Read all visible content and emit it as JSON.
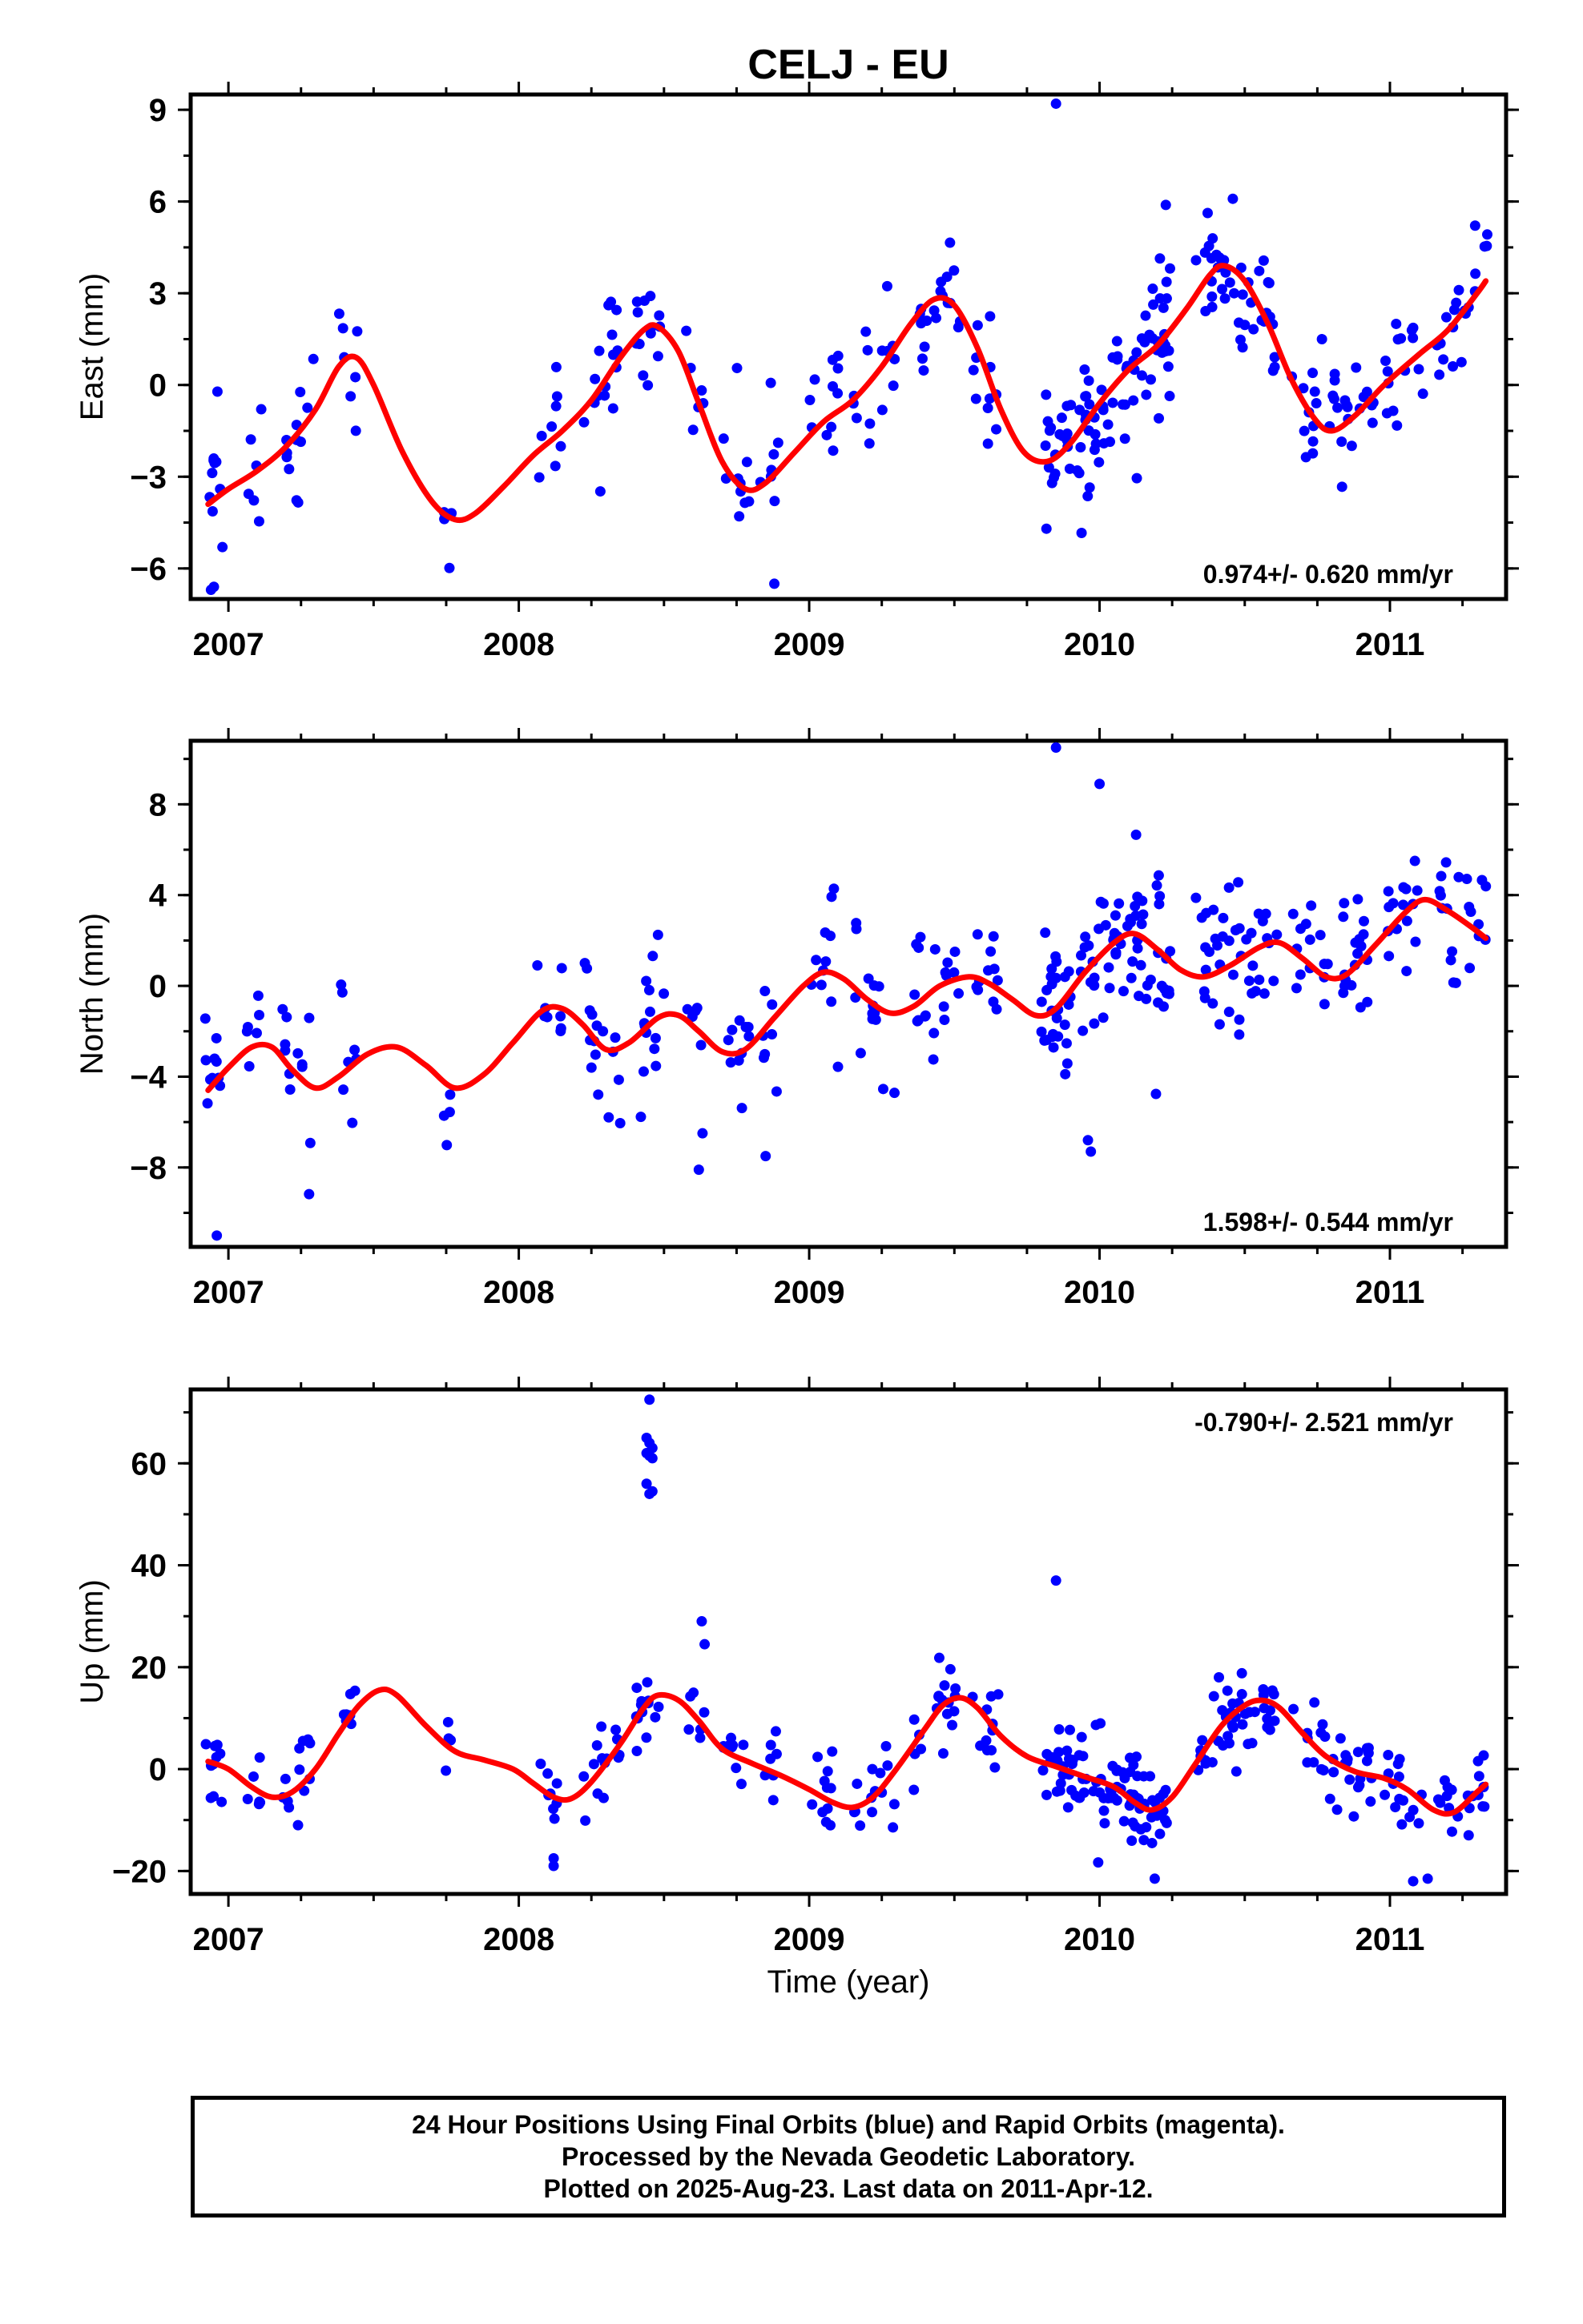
{
  "chart_data": {
    "type": "scatter",
    "title": "CELJ - EU",
    "xlabel": "Time (year)",
    "x_ticks": [
      "2007",
      "2008",
      "2009",
      "2010",
      "2011"
    ],
    "xlim": [
      2006.87,
      2011.4
    ],
    "panels": [
      {
        "name": "east",
        "ylabel": "East (mm)",
        "ylim": [
          -7.0,
          9.5
        ],
        "y_ticks": [
          -6,
          -3,
          0,
          3,
          6,
          9
        ],
        "y_tick_labels": [
          "−6",
          "−3",
          "0",
          "3",
          "6",
          "9"
        ],
        "rate_label": "0.974+/- 0.620 mm/yr",
        "rate_position": "bottom-right",
        "fit_color": "#ff0000",
        "points_color": "#0000ff",
        "fit": [
          [
            2006.93,
            -3.9
          ],
          [
            2007.0,
            -3.4
          ],
          [
            2007.1,
            -2.8
          ],
          [
            2007.2,
            -2.0
          ],
          [
            2007.3,
            -0.8
          ],
          [
            2007.38,
            0.6
          ],
          [
            2007.44,
            0.9
          ],
          [
            2007.5,
            0.0
          ],
          [
            2007.6,
            -2.2
          ],
          [
            2007.7,
            -3.8
          ],
          [
            2007.78,
            -4.4
          ],
          [
            2007.85,
            -4.2
          ],
          [
            2007.95,
            -3.3
          ],
          [
            2008.05,
            -2.3
          ],
          [
            2008.15,
            -1.5
          ],
          [
            2008.25,
            -0.5
          ],
          [
            2008.35,
            0.9
          ],
          [
            2008.43,
            1.8
          ],
          [
            2008.48,
            1.9
          ],
          [
            2008.55,
            1.1
          ],
          [
            2008.62,
            -0.6
          ],
          [
            2008.7,
            -2.5
          ],
          [
            2008.78,
            -3.4
          ],
          [
            2008.85,
            -3.2
          ],
          [
            2008.95,
            -2.2
          ],
          [
            2009.05,
            -1.2
          ],
          [
            2009.15,
            -0.5
          ],
          [
            2009.25,
            0.6
          ],
          [
            2009.35,
            2.0
          ],
          [
            2009.43,
            2.8
          ],
          [
            2009.5,
            2.6
          ],
          [
            2009.58,
            1.2
          ],
          [
            2009.66,
            -0.8
          ],
          [
            2009.74,
            -2.2
          ],
          [
            2009.82,
            -2.5
          ],
          [
            2009.9,
            -1.9
          ],
          [
            2010.0,
            -0.6
          ],
          [
            2010.1,
            0.5
          ],
          [
            2010.2,
            1.3
          ],
          [
            2010.3,
            2.5
          ],
          [
            2010.38,
            3.6
          ],
          [
            2010.43,
            3.9
          ],
          [
            2010.5,
            3.4
          ],
          [
            2010.58,
            2.0
          ],
          [
            2010.66,
            0.2
          ],
          [
            2010.74,
            -1.1
          ],
          [
            2010.8,
            -1.5
          ],
          [
            2010.88,
            -1.0
          ],
          [
            2010.98,
            0.0
          ],
          [
            2011.1,
            1.0
          ],
          [
            2011.2,
            1.8
          ],
          [
            2011.3,
            3.0
          ],
          [
            2011.33,
            3.4
          ]
        ],
        "outliers": [
          [
            2009.85,
            9.2
          ],
          [
            2008.88,
            -6.5
          ],
          [
            2006.94,
            -6.7
          ],
          [
            2006.95,
            -6.6
          ]
        ]
      },
      {
        "name": "north",
        "ylabel": "North (mm)",
        "ylim": [
          -11.5,
          10.8
        ],
        "y_ticks": [
          -8,
          -4,
          0,
          4,
          8
        ],
        "y_tick_labels": [
          "−8",
          "−4",
          "0",
          "4",
          "8"
        ],
        "rate_label": "1.598+/- 0.544 mm/yr",
        "rate_position": "bottom-right",
        "fit_color": "#ff0000",
        "points_color": "#0000ff",
        "fit": [
          [
            2006.93,
            -4.6
          ],
          [
            2007.0,
            -3.6
          ],
          [
            2007.08,
            -2.7
          ],
          [
            2007.15,
            -2.7
          ],
          [
            2007.22,
            -3.7
          ],
          [
            2007.3,
            -4.5
          ],
          [
            2007.38,
            -4.0
          ],
          [
            2007.48,
            -3.0
          ],
          [
            2007.58,
            -2.7
          ],
          [
            2007.68,
            -3.5
          ],
          [
            2007.78,
            -4.5
          ],
          [
            2007.88,
            -3.9
          ],
          [
            2007.98,
            -2.5
          ],
          [
            2008.08,
            -1.1
          ],
          [
            2008.15,
            -1.0
          ],
          [
            2008.22,
            -1.7
          ],
          [
            2008.3,
            -2.8
          ],
          [
            2008.38,
            -2.5
          ],
          [
            2008.48,
            -1.4
          ],
          [
            2008.55,
            -1.3
          ],
          [
            2008.62,
            -2.0
          ],
          [
            2008.7,
            -2.9
          ],
          [
            2008.78,
            -2.8
          ],
          [
            2008.88,
            -1.4
          ],
          [
            2008.98,
            0.0
          ],
          [
            2009.05,
            0.6
          ],
          [
            2009.12,
            0.3
          ],
          [
            2009.2,
            -0.6
          ],
          [
            2009.28,
            -1.2
          ],
          [
            2009.36,
            -0.9
          ],
          [
            2009.45,
            0.0
          ],
          [
            2009.55,
            0.4
          ],
          [
            2009.62,
            0.1
          ],
          [
            2009.7,
            -0.6
          ],
          [
            2009.78,
            -1.3
          ],
          [
            2009.85,
            -1.0
          ],
          [
            2009.95,
            0.6
          ],
          [
            2010.05,
            1.9
          ],
          [
            2010.12,
            2.3
          ],
          [
            2010.2,
            1.6
          ],
          [
            2010.28,
            0.7
          ],
          [
            2010.36,
            0.4
          ],
          [
            2010.45,
            0.9
          ],
          [
            2010.55,
            1.7
          ],
          [
            2010.62,
            1.9
          ],
          [
            2010.7,
            1.2
          ],
          [
            2010.78,
            0.4
          ],
          [
            2010.85,
            0.5
          ],
          [
            2010.95,
            1.8
          ],
          [
            2011.05,
            3.2
          ],
          [
            2011.12,
            3.8
          ],
          [
            2011.2,
            3.3
          ],
          [
            2011.28,
            2.6
          ],
          [
            2011.33,
            2.1
          ]
        ],
        "outliers": [
          [
            2009.85,
            10.5
          ],
          [
            2010.0,
            8.9
          ],
          [
            2006.96,
            -11.0
          ],
          [
            2008.62,
            -8.1
          ],
          [
            2008.85,
            -7.5
          ],
          [
            2009.97,
            -7.3
          ],
          [
            2009.96,
            -6.8
          ]
        ]
      },
      {
        "name": "up",
        "ylabel": "Up (mm)",
        "ylim": [
          -24.5,
          74.5
        ],
        "y_ticks": [
          -20,
          0,
          20,
          40,
          60
        ],
        "y_tick_labels": [
          "−20",
          "0",
          "20",
          "40",
          "60"
        ],
        "rate_label": "-0.790+/- 2.521 mm/yr",
        "rate_position": "top-right",
        "fit_color": "#ff0000",
        "points_color": "#0000ff",
        "fit": [
          [
            2006.93,
            1.5
          ],
          [
            2007.0,
            0.0
          ],
          [
            2007.08,
            -3.5
          ],
          [
            2007.15,
            -5.5
          ],
          [
            2007.22,
            -4.5
          ],
          [
            2007.3,
            0.0
          ],
          [
            2007.38,
            7.0
          ],
          [
            2007.45,
            12.5
          ],
          [
            2007.52,
            15.5
          ],
          [
            2007.58,
            14.5
          ],
          [
            2007.68,
            8.5
          ],
          [
            2007.78,
            3.5
          ],
          [
            2007.88,
            1.8
          ],
          [
            2007.98,
            0.0
          ],
          [
            2008.05,
            -2.8
          ],
          [
            2008.12,
            -5.5
          ],
          [
            2008.18,
            -5.8
          ],
          [
            2008.25,
            -2.5
          ],
          [
            2008.35,
            5.0
          ],
          [
            2008.43,
            12.0
          ],
          [
            2008.48,
            14.5
          ],
          [
            2008.55,
            13.5
          ],
          [
            2008.62,
            9.5
          ],
          [
            2008.7,
            4.0
          ],
          [
            2008.8,
            1.2
          ],
          [
            2008.9,
            -1.2
          ],
          [
            2009.0,
            -4.0
          ],
          [
            2009.08,
            -6.5
          ],
          [
            2009.15,
            -7.5
          ],
          [
            2009.22,
            -5.5
          ],
          [
            2009.3,
            0.0
          ],
          [
            2009.4,
            8.0
          ],
          [
            2009.46,
            12.5
          ],
          [
            2009.52,
            14.0
          ],
          [
            2009.58,
            12.0
          ],
          [
            2009.66,
            6.5
          ],
          [
            2009.75,
            2.5
          ],
          [
            2009.85,
            0.5
          ],
          [
            2009.95,
            -1.5
          ],
          [
            2010.05,
            -3.5
          ],
          [
            2010.12,
            -6.5
          ],
          [
            2010.18,
            -8.0
          ],
          [
            2010.25,
            -5.5
          ],
          [
            2010.33,
            1.0
          ],
          [
            2010.42,
            8.5
          ],
          [
            2010.5,
            12.5
          ],
          [
            2010.56,
            13.5
          ],
          [
            2010.62,
            12.0
          ],
          [
            2010.7,
            7.0
          ],
          [
            2010.78,
            2.5
          ],
          [
            2010.88,
            -0.5
          ],
          [
            2010.98,
            -1.8
          ],
          [
            2011.06,
            -4.0
          ],
          [
            2011.15,
            -8.0
          ],
          [
            2011.22,
            -8.5
          ],
          [
            2011.3,
            -4.5
          ],
          [
            2011.33,
            -3.0
          ]
        ],
        "outliers": [
          [
            2008.45,
            72.5
          ],
          [
            2008.44,
            65.0
          ],
          [
            2008.45,
            64.0
          ],
          [
            2008.46,
            63.0
          ],
          [
            2008.44,
            62.0
          ],
          [
            2008.45,
            61.5
          ],
          [
            2008.46,
            61.0
          ],
          [
            2008.44,
            56.0
          ],
          [
            2008.46,
            54.5
          ],
          [
            2008.45,
            54.0
          ],
          [
            2009.85,
            37.0
          ],
          [
            2008.63,
            29.0
          ],
          [
            2008.64,
            24.5
          ],
          [
            2010.19,
            -21.5
          ],
          [
            2011.13,
            -21.5
          ],
          [
            2011.08,
            -22.0
          ],
          [
            2008.12,
            -19.0
          ],
          [
            2008.12,
            -17.5
          ]
        ]
      }
    ]
  },
  "footer": {
    "line1": "24 Hour Positions Using Final Orbits (blue) and Rapid Orbits (magenta).",
    "line2": "Processed by the Nevada Geodetic Laboratory.",
    "line3": "Plotted on 2025-Aug-23. Last data on 2011-Apr-12."
  }
}
